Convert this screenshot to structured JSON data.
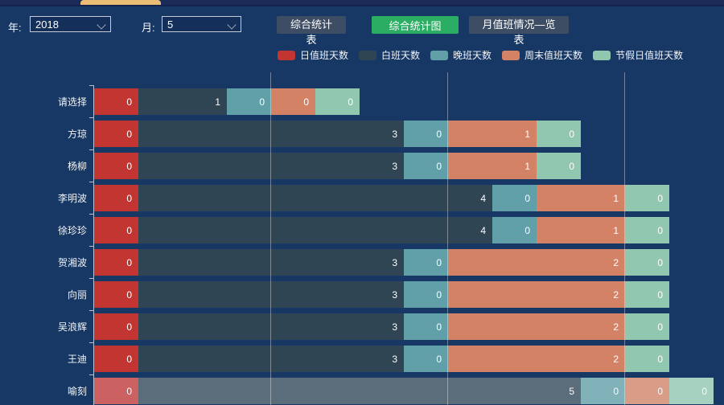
{
  "toolbar": {
    "year_label": "年:",
    "year_value": "2018",
    "month_label": "月:",
    "month_value": "5",
    "buttons": [
      {
        "label": "综合统计表",
        "style": "slate",
        "active": false
      },
      {
        "label": "综合统计图",
        "style": "green",
        "active": true
      },
      {
        "label": "月值班情况—览表",
        "style": "slate",
        "active": false
      }
    ]
  },
  "colors": {
    "background": "#173864",
    "tab_indicator": "#ecbd74",
    "active_button_green": "#2bad64",
    "inactive_button_slate": "#3d4d63"
  },
  "chart_data": {
    "type": "bar",
    "orientation": "horizontal",
    "stacked": true,
    "grid": true,
    "legend_position": "top",
    "categories": [
      "请选择",
      "方琼",
      "杨柳",
      "李明波",
      "徐珍珍",
      "贺湘波",
      "向丽",
      "吴浪辉",
      "王迪",
      "喻刻"
    ],
    "series": [
      {
        "name": "日值班天数",
        "color": "#c23531",
        "values": [
          0,
          0,
          0,
          0,
          0,
          0,
          0,
          0,
          0,
          0
        ]
      },
      {
        "name": "白班天数",
        "color": "#2f4554",
        "values": [
          1,
          3,
          3,
          4,
          4,
          3,
          3,
          3,
          3,
          5
        ]
      },
      {
        "name": "晚班天数",
        "color": "#61a0a8",
        "values": [
          0,
          0,
          0,
          0,
          0,
          0,
          0,
          0,
          0,
          0
        ]
      },
      {
        "name": "周末值班天数",
        "color": "#d48265",
        "values": [
          0,
          1,
          1,
          1,
          1,
          2,
          2,
          2,
          2,
          0
        ]
      },
      {
        "name": "节假日值班天数",
        "color": "#91c7ae",
        "values": [
          0,
          0,
          0,
          0,
          0,
          0,
          0,
          0,
          0,
          0
        ]
      }
    ],
    "xlim": [
      0,
      7
    ],
    "gridline_values": [
      2,
      4,
      6
    ],
    "zero_segment_render_units": 0.5,
    "value_label_position": "insideRight",
    "highlighted_category": "喻刻"
  }
}
